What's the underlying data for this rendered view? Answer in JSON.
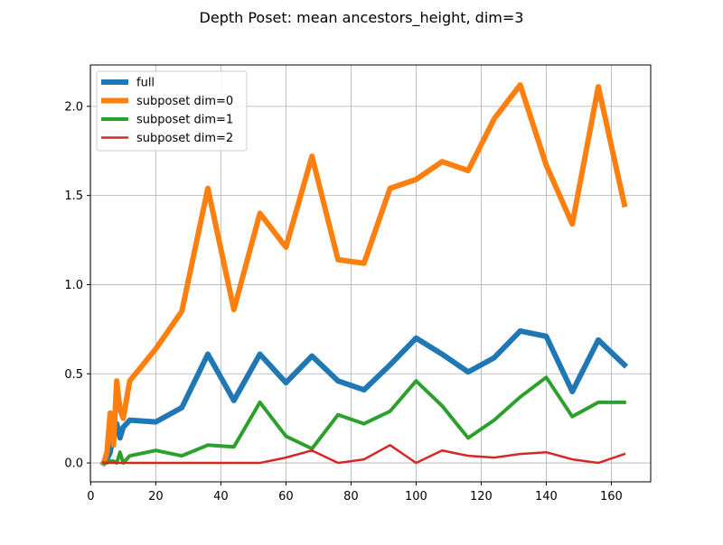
{
  "chart_data": {
    "type": "line",
    "title": "Depth Poset: mean ancestors_height, dim=3",
    "xlabel": "",
    "ylabel": "",
    "xlim": [
      -0.1,
      172.1
    ],
    "ylim": [
      -0.106,
      2.232
    ],
    "xticks": [
      0,
      20,
      40,
      60,
      80,
      100,
      120,
      140,
      160
    ],
    "xtick_labels": [
      "0",
      "20",
      "40",
      "60",
      "80",
      "100",
      "120",
      "140",
      "160"
    ],
    "yticks": [
      0.0,
      0.5,
      1.0,
      1.5,
      2.0
    ],
    "ytick_labels": [
      "0.0",
      "0.5",
      "1.0",
      "1.5",
      "2.0"
    ],
    "grid": true,
    "legend_position": "top-left",
    "series": [
      {
        "name": "full",
        "color": "#1f77b4",
        "width": 6,
        "x": [
          4,
          5,
          6,
          7,
          8,
          9,
          10,
          12,
          20,
          28,
          36,
          44,
          52,
          60,
          68,
          76,
          84,
          92,
          100,
          108,
          116,
          124,
          132,
          140,
          148,
          156,
          164
        ],
        "y": [
          0.0,
          0.02,
          0.06,
          0.16,
          0.22,
          0.14,
          0.2,
          0.24,
          0.23,
          0.31,
          0.61,
          0.35,
          0.61,
          0.45,
          0.6,
          0.46,
          0.41,
          0.55,
          0.7,
          0.61,
          0.51,
          0.59,
          0.74,
          0.71,
          0.4,
          0.69,
          0.55
        ]
      },
      {
        "name": "subposet dim=0",
        "color": "#ff7f0e",
        "width": 6,
        "x": [
          4,
          5,
          6,
          7,
          8,
          9,
          10,
          12,
          20,
          28,
          36,
          44,
          52,
          60,
          68,
          76,
          84,
          92,
          100,
          108,
          116,
          124,
          132,
          140,
          148,
          156,
          164
        ],
        "y": [
          0.0,
          0.06,
          0.28,
          0.1,
          0.46,
          0.3,
          0.25,
          0.46,
          0.64,
          0.85,
          1.54,
          0.86,
          1.4,
          1.21,
          1.72,
          1.14,
          1.12,
          1.54,
          1.59,
          1.69,
          1.64,
          1.93,
          2.12,
          1.67,
          1.34,
          2.11,
          1.45
        ]
      },
      {
        "name": "subposet dim=1",
        "color": "#2ca02c",
        "width": 4,
        "x": [
          4,
          5,
          6,
          7,
          8,
          9,
          10,
          12,
          20,
          28,
          36,
          44,
          52,
          60,
          68,
          76,
          84,
          92,
          100,
          108,
          116,
          124,
          132,
          140,
          148,
          156,
          164
        ],
        "y": [
          0.0,
          0.0,
          0.01,
          0.01,
          0.0,
          0.06,
          0.0,
          0.04,
          0.07,
          0.04,
          0.1,
          0.09,
          0.34,
          0.15,
          0.08,
          0.27,
          0.22,
          0.29,
          0.46,
          0.32,
          0.14,
          0.24,
          0.37,
          0.48,
          0.26,
          0.34,
          0.34
        ]
      },
      {
        "name": "subposet dim=2",
        "color": "#d62728",
        "width": 2.5,
        "x": [
          4,
          5,
          6,
          7,
          8,
          9,
          10,
          12,
          20,
          28,
          36,
          44,
          52,
          60,
          68,
          76,
          84,
          92,
          100,
          108,
          116,
          124,
          132,
          140,
          148,
          156,
          164
        ],
        "y": [
          0.0,
          0.0,
          0.0,
          0.0,
          0.0,
          0.0,
          0.0,
          0.0,
          0.0,
          0.0,
          0.0,
          0.0,
          0.0,
          0.03,
          0.07,
          0.0,
          0.02,
          0.1,
          0.0,
          0.07,
          0.04,
          0.03,
          0.05,
          0.06,
          0.02,
          0.0,
          0.05
        ]
      }
    ]
  }
}
